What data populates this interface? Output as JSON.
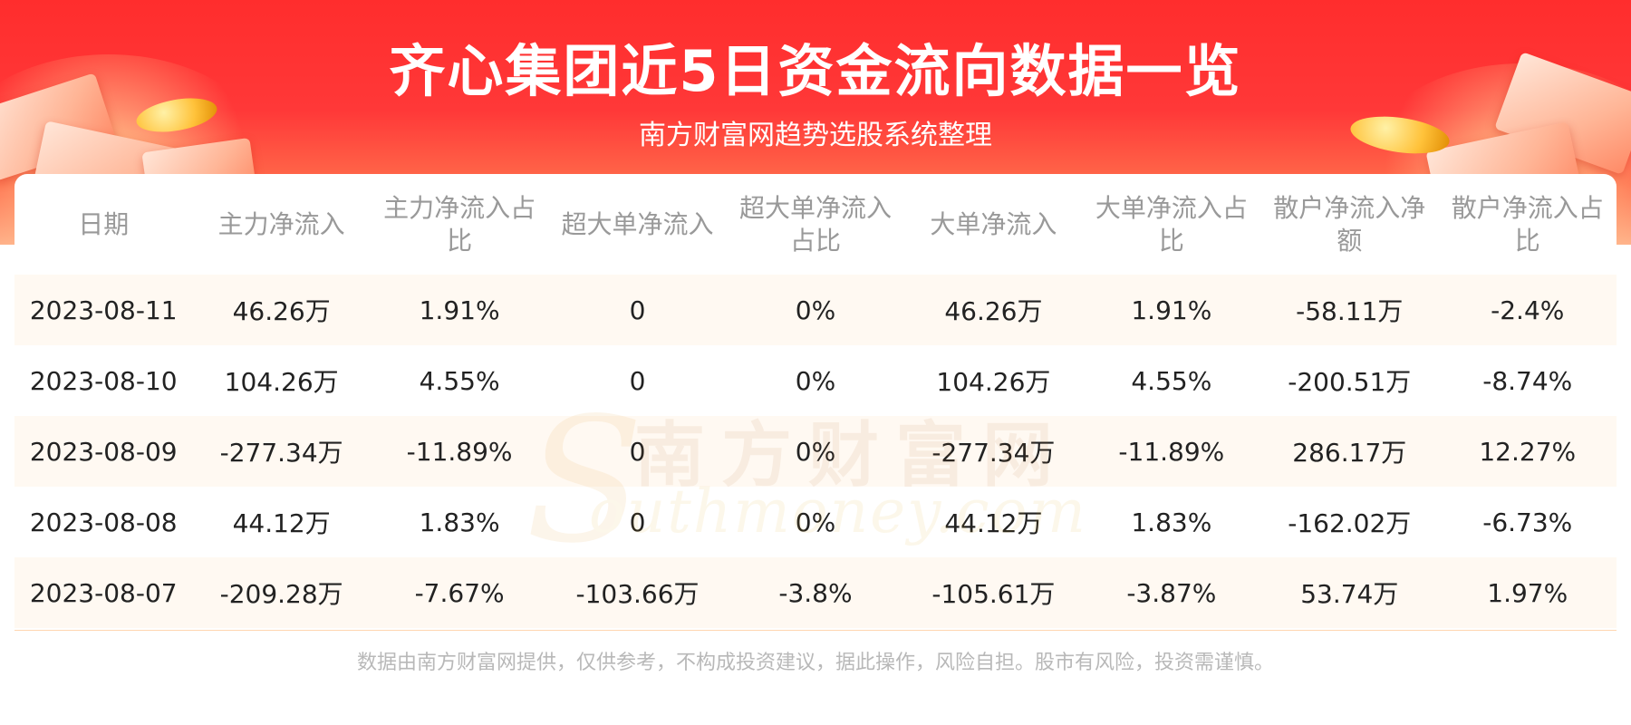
{
  "header": {
    "title": "齐心集团近5日资金流向数据一览",
    "subtitle": "南方财富网趋势选股系统整理"
  },
  "watermark": {
    "cn": "南方财富网",
    "en": "outhmoney.com",
    "s": "S"
  },
  "chart_data": {
    "type": "table",
    "columns": [
      "日期",
      "主力净流入",
      "主力净流入占比",
      "超大单净流入",
      "超大单净流入占比",
      "大单净流入",
      "大单净流入占比",
      "散户净流入净额",
      "散户净流入占比"
    ],
    "rows": [
      [
        "2023-08-11",
        "46.26万",
        "1.91%",
        "0",
        "0%",
        "46.26万",
        "1.91%",
        "-58.11万",
        "-2.4%"
      ],
      [
        "2023-08-10",
        "104.26万",
        "4.55%",
        "0",
        "0%",
        "104.26万",
        "4.55%",
        "-200.51万",
        "-8.74%"
      ],
      [
        "2023-08-09",
        "-277.34万",
        "-11.89%",
        "0",
        "0%",
        "-277.34万",
        "-11.89%",
        "286.17万",
        "12.27%"
      ],
      [
        "2023-08-08",
        "44.12万",
        "1.83%",
        "0",
        "0%",
        "44.12万",
        "1.83%",
        "-162.02万",
        "-6.73%"
      ],
      [
        "2023-08-07",
        "-209.28万",
        "-7.67%",
        "-103.66万",
        "-3.8%",
        "-105.61万",
        "-3.87%",
        "53.74万",
        "1.97%"
      ]
    ]
  },
  "footer": {
    "disclaimer": "数据由南方财富网提供，仅供参考，不构成投资建议，据此操作，风险自担。股市有风险，投资需谨慎。"
  },
  "colors": {
    "banner": "#ff3838",
    "header_text": "#999999",
    "row_alt": "#fff9f2",
    "body_text": "#222222"
  }
}
